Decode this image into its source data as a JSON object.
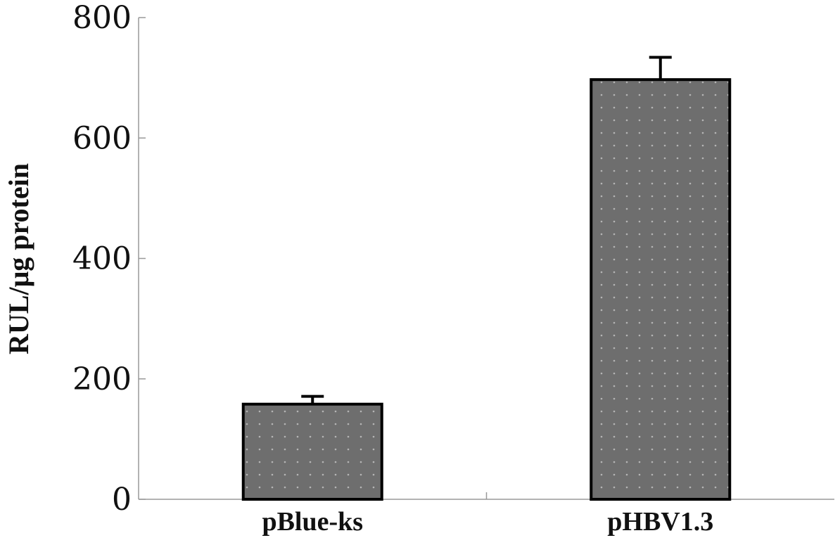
{
  "chart_data": {
    "type": "bar",
    "title": "",
    "xlabel": "",
    "ylabel": "RUL/μg protein",
    "categories": [
      "pBlue-ks",
      "pHBV1.3"
    ],
    "values": [
      158,
      697
    ],
    "errors": [
      13,
      37
    ],
    "ylim": [
      0,
      800
    ],
    "yticks": [
      0,
      200,
      400,
      600,
      800
    ],
    "grid": false,
    "bar_color": "#6e6e6e",
    "bar_dot_color": "#b5b5b5",
    "edge_color": "#000000"
  }
}
